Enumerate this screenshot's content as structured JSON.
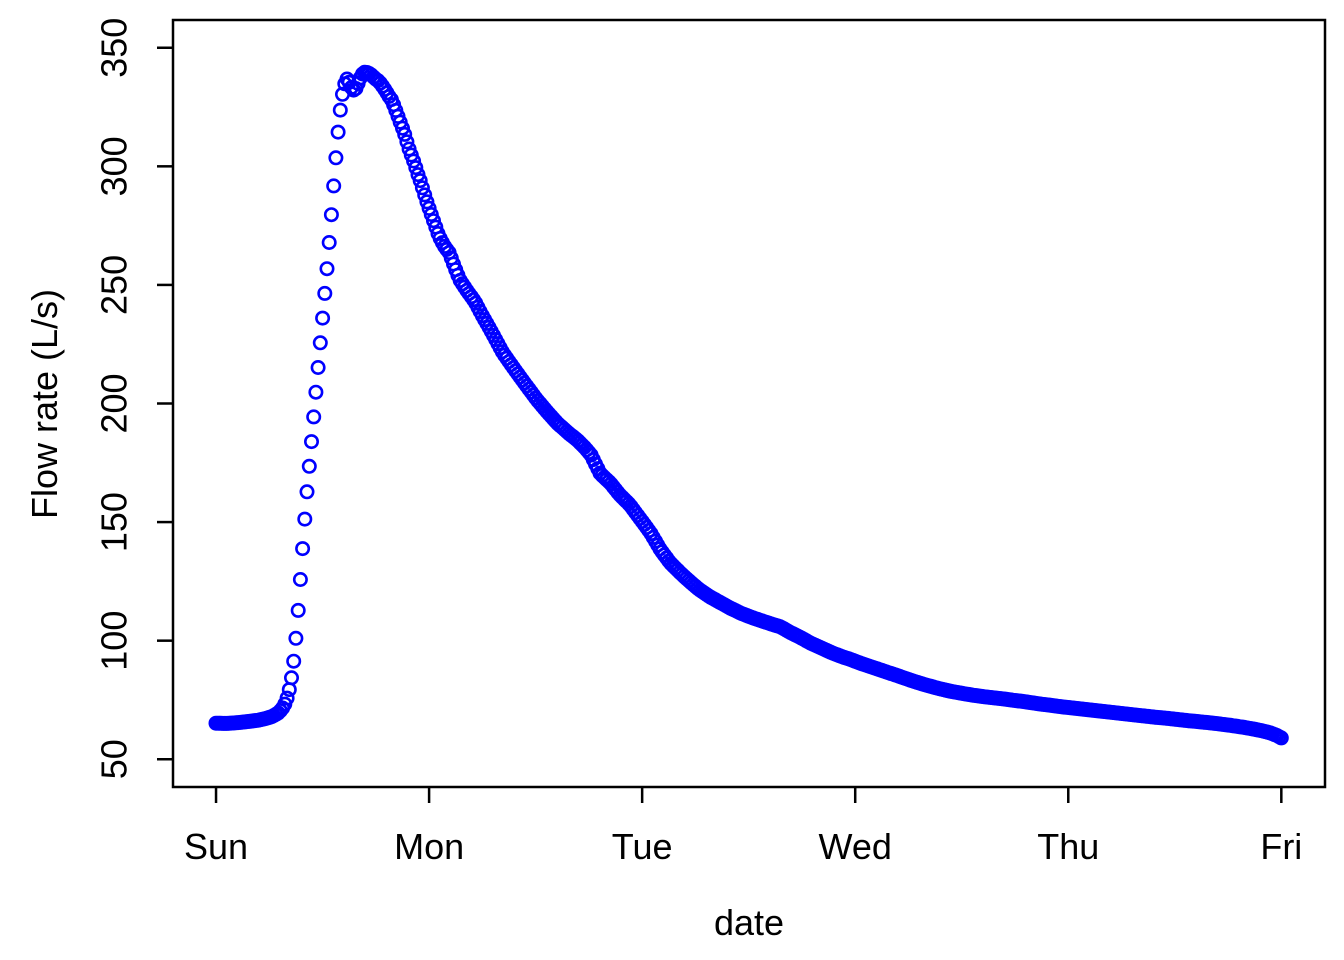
{
  "chart_data": {
    "type": "scatter",
    "title": "",
    "xlabel": "date",
    "ylabel": "Flow rate (L/s)",
    "x_tick_labels": [
      "Sun",
      "Mon",
      "Tue",
      "Wed",
      "Thu",
      "Fri"
    ],
    "x_tick_positions_days": [
      0,
      1,
      2,
      3,
      4,
      5
    ],
    "y_tick_labels": [
      "50",
      "100",
      "150",
      "200",
      "250",
      "300",
      "350"
    ],
    "y_ticks": [
      50,
      100,
      150,
      200,
      250,
      300,
      350
    ],
    "xlim_days": [
      -0.202,
      5.205
    ],
    "ylim": [
      38.3,
      361.7
    ],
    "grid": false,
    "legend": null,
    "x_unit": "day (0 = Sun 00:00, 1 = Mon 00:00, ...)",
    "y_unit": "L/s",
    "series_name": "flow_rate",
    "marker": {
      "shape": "open-circle",
      "color": "#0000ff",
      "radius_px": 6.2,
      "stroke_px": 2.6
    },
    "frame_color": "#000000",
    "sampling_minutes": 15,
    "peak_value_Ls": 339.7,
    "start_value_Ls": 65.2,
    "end_value_Ls": 58.4,
    "control_points": [
      [
        0.0,
        65.2
      ],
      [
        0.05,
        65.1
      ],
      [
        0.1,
        65.4
      ],
      [
        0.15,
        65.9
      ],
      [
        0.2,
        66.5
      ],
      [
        0.235,
        67.2
      ],
      [
        0.265,
        68.1
      ],
      [
        0.29,
        69.4
      ],
      [
        0.31,
        71.2
      ],
      [
        0.325,
        73.6
      ],
      [
        0.338,
        77.0
      ],
      [
        0.349,
        81.5
      ],
      [
        0.359,
        87.0
      ],
      [
        0.368,
        94.0
      ],
      [
        0.376,
        102.0
      ],
      [
        0.384,
        111.0
      ],
      [
        0.392,
        121.0
      ],
      [
        0.4,
        131.0
      ],
      [
        0.408,
        141.0
      ],
      [
        0.416,
        150.5
      ],
      [
        0.424,
        159.5
      ],
      [
        0.432,
        168.0
      ],
      [
        0.44,
        176.0
      ],
      [
        0.449,
        185.0
      ],
      [
        0.458,
        194.0
      ],
      [
        0.467,
        203.0
      ],
      [
        0.476,
        212.0
      ],
      [
        0.485,
        221.0
      ],
      [
        0.494,
        230.0
      ],
      [
        0.503,
        239.0
      ],
      [
        0.512,
        248.0
      ],
      [
        0.521,
        257.0
      ],
      [
        0.53,
        266.5
      ],
      [
        0.539,
        276.5
      ],
      [
        0.548,
        287.0
      ],
      [
        0.557,
        297.5
      ],
      [
        0.566,
        307.5
      ],
      [
        0.575,
        316.5
      ],
      [
        0.583,
        323.5
      ],
      [
        0.591,
        329.0
      ],
      [
        0.599,
        333.0
      ],
      [
        0.607,
        335.8
      ],
      [
        0.615,
        336.9
      ],
      [
        0.623,
        335.9
      ],
      [
        0.631,
        334.0
      ],
      [
        0.639,
        332.6
      ],
      [
        0.648,
        332.0
      ],
      [
        0.657,
        332.9
      ],
      [
        0.666,
        334.8
      ],
      [
        0.675,
        336.9
      ],
      [
        0.684,
        338.6
      ],
      [
        0.694,
        339.6
      ],
      [
        0.705,
        339.7
      ],
      [
        0.716,
        339.3
      ],
      [
        0.728,
        338.6
      ],
      [
        0.74,
        337.6
      ],
      [
        0.752,
        336.6
      ],
      [
        0.764,
        335.9
      ],
      [
        0.776,
        334.5
      ],
      [
        0.788,
        333.0
      ],
      [
        0.8,
        331.3
      ],
      [
        0.812,
        329.5
      ],
      [
        0.824,
        328.0
      ],
      [
        0.836,
        325.4
      ],
      [
        0.848,
        322.6
      ],
      [
        0.86,
        319.7
      ],
      [
        0.872,
        316.8
      ],
      [
        0.884,
        313.9
      ],
      [
        0.896,
        310.3
      ],
      [
        0.908,
        306.8
      ],
      [
        0.92,
        304.0
      ],
      [
        0.933,
        300.8
      ],
      [
        0.946,
        297.0
      ],
      [
        0.959,
        293.8
      ],
      [
        0.972,
        290.0
      ],
      [
        0.986,
        286.0
      ],
      [
        1.0,
        282.3
      ],
      [
        1.02,
        277.3
      ],
      [
        1.045,
        270.8
      ],
      [
        1.07,
        266.6
      ],
      [
        1.095,
        263.5
      ],
      [
        1.12,
        257.5
      ],
      [
        1.145,
        252.0
      ],
      [
        1.18,
        247.3
      ],
      [
        1.216,
        242.8
      ],
      [
        1.25,
        237.0
      ],
      [
        1.286,
        231.4
      ],
      [
        1.316,
        226.4
      ],
      [
        1.347,
        221.3
      ],
      [
        1.387,
        216.2
      ],
      [
        1.427,
        211.2
      ],
      [
        1.467,
        206.3
      ],
      [
        1.507,
        201.5
      ],
      [
        1.554,
        196.5
      ],
      [
        1.601,
        191.8
      ],
      [
        1.648,
        188.0
      ],
      [
        1.695,
        184.6
      ],
      [
        1.73,
        181.5
      ],
      [
        1.76,
        178.3
      ],
      [
        1.803,
        170.5
      ],
      [
        1.85,
        166.5
      ],
      [
        1.895,
        161.5
      ],
      [
        1.94,
        157.5
      ],
      [
        1.99,
        151.5
      ],
      [
        2.04,
        145.4
      ],
      [
        2.085,
        138.5
      ],
      [
        2.13,
        133.0
      ],
      [
        2.18,
        128.5
      ],
      [
        2.225,
        124.8
      ],
      [
        2.27,
        121.4
      ],
      [
        2.32,
        118.4
      ],
      [
        2.37,
        115.9
      ],
      [
        2.415,
        113.7
      ],
      [
        2.46,
        111.7
      ],
      [
        2.505,
        110.1
      ],
      [
        2.55,
        108.7
      ],
      [
        2.6,
        107.2
      ],
      [
        2.65,
        105.8
      ],
      [
        2.695,
        103.5
      ],
      [
        2.74,
        101.5
      ],
      [
        2.79,
        99.0
      ],
      [
        2.835,
        97.2
      ],
      [
        2.88,
        95.3
      ],
      [
        2.93,
        93.5
      ],
      [
        2.98,
        92.0
      ],
      [
        3.03,
        90.3
      ],
      [
        3.08,
        88.8
      ],
      [
        3.14,
        87.0
      ],
      [
        3.2,
        85.2
      ],
      [
        3.26,
        83.3
      ],
      [
        3.32,
        81.6
      ],
      [
        3.38,
        80.1
      ],
      [
        3.44,
        78.8
      ],
      [
        3.5,
        77.8
      ],
      [
        3.56,
        76.9
      ],
      [
        3.62,
        76.2
      ],
      [
        3.68,
        75.6
      ],
      [
        3.74,
        74.9
      ],
      [
        3.8,
        74.2
      ],
      [
        3.86,
        73.4
      ],
      [
        3.92,
        72.7
      ],
      [
        3.98,
        72.0
      ],
      [
        4.04,
        71.4
      ],
      [
        4.1,
        70.8
      ],
      [
        4.16,
        70.2
      ],
      [
        4.22,
        69.6
      ],
      [
        4.28,
        69.0
      ],
      [
        4.34,
        68.4
      ],
      [
        4.4,
        67.8
      ],
      [
        4.46,
        67.3
      ],
      [
        4.52,
        66.7
      ],
      [
        4.58,
        66.1
      ],
      [
        4.64,
        65.6
      ],
      [
        4.7,
        65.0
      ],
      [
        4.76,
        64.3
      ],
      [
        4.82,
        63.5
      ],
      [
        4.87,
        62.7
      ],
      [
        4.91,
        62.0
      ],
      [
        4.945,
        61.2
      ],
      [
        4.975,
        60.2
      ],
      [
        5.0,
        59.0
      ],
      [
        5.01,
        58.4
      ]
    ]
  }
}
